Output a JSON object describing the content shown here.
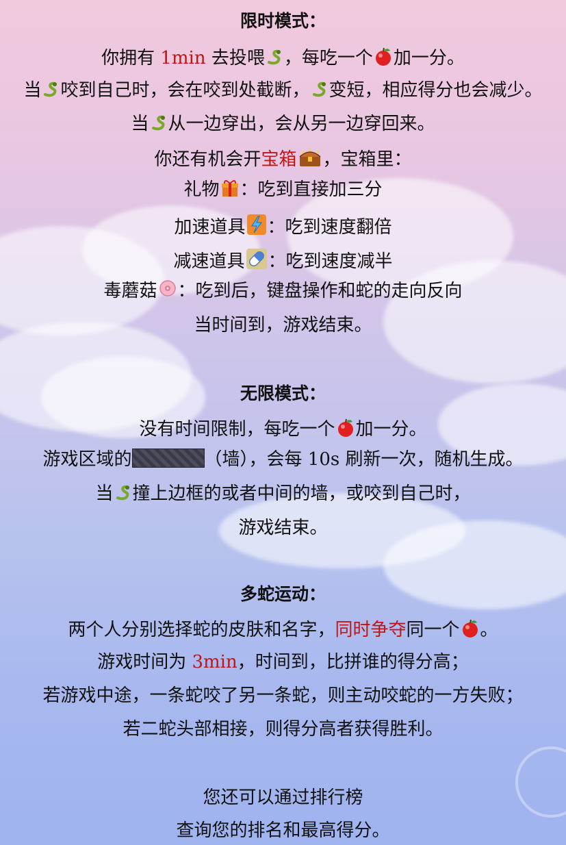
{
  "timed": {
    "title": "限时模式：",
    "l1a": "你拥有 ",
    "l1time": "1min",
    "l1b": " 去投喂",
    "l1c": "，每吃一个",
    "l1d": "加一分。",
    "l2a": "当",
    "l2b": "咬到自己时，会在咬到处截断，",
    "l2c": "变短，相应得分也会减少。",
    "l3a": "当",
    "l3b": "从一边穿出，会从另一边穿回来。",
    "l4a": "你还有机会开",
    "l4box": "宝箱",
    "l4b": "，宝箱里：",
    "gift_a": "礼物",
    "gift_b": "：吃到直接加三分",
    "speed_a": "加速道具",
    "speed_b": "：吃到速度翻倍",
    "slow_a": "减速道具",
    "slow_b": "：吃到速度减半",
    "mush_a": "毒蘑菇",
    "mush_b": "：吃到后，键盘操作和蛇的走向反向",
    "end": "当时间到，游戏结束。"
  },
  "endless": {
    "title": "无限模式：",
    "l1a": "没有时间限制，每吃一个",
    "l1b": "加一分。",
    "l2a": "游戏区域的",
    "l2b": "（墙），会每 ",
    "l2num": "10s",
    "l2c": " 刷新一次，随机生成。",
    "l3a": "当",
    "l3b": "撞上边框的或者中间的墙，或咬到自己时，",
    "l4": "游戏结束。"
  },
  "multi": {
    "title": "多蛇运动：",
    "l1a": "两个人分别选择蛇的皮肤和名字，",
    "l1red": "同时争夺",
    "l1b": "同一个",
    "l1c": "。",
    "l2a": "游戏时间为 ",
    "l2time": "3min",
    "l2b": "，时间到，比拼谁的得分高；",
    "l3": "若游戏中途，一条蛇咬了另一条蛇，则主动咬蛇的一方失败；",
    "l4": "若二蛇头部相接，则得分高者获得胜利。"
  },
  "footer": {
    "l1": "您还可以通过排行榜",
    "l2": "查询您的排名和最高得分。"
  },
  "icons": {
    "snake": "snake-icon",
    "apple": "apple-icon",
    "chest": "treasure-chest-icon",
    "gift": "gift-icon",
    "speed": "lightning-icon",
    "slow": "pill-icon",
    "mushroom": "mushroom-icon"
  },
  "colors": {
    "highlight": "#c01515",
    "snake": "#7aa82a",
    "apple": "#e02020"
  }
}
